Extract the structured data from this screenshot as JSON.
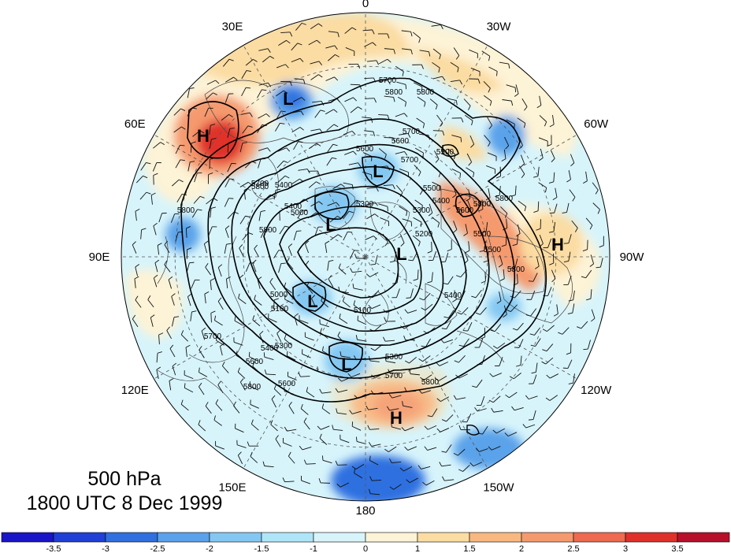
{
  "map": {
    "projection": "north-polar-stereographic",
    "longitude_labels": [
      {
        "lon": 0,
        "text": "0"
      },
      {
        "lon": 30,
        "text": "30W"
      },
      {
        "lon": 60,
        "text": "60W"
      },
      {
        "lon": 90,
        "text": "90W"
      },
      {
        "lon": 120,
        "text": "120W"
      },
      {
        "lon": 150,
        "text": "150W"
      },
      {
        "lon": 180,
        "text": "180"
      },
      {
        "lon": 210,
        "text": "150E"
      },
      {
        "lon": 240,
        "text": "120E"
      },
      {
        "lon": 270,
        "text": "90E"
      },
      {
        "lon": 300,
        "text": "60E"
      },
      {
        "lon": 330,
        "text": "30E"
      }
    ],
    "contour_labels": [
      "5700",
      "5600",
      "5800",
      "5500",
      "5400",
      "5300",
      "5200",
      "5100",
      "5000"
    ],
    "pressure_centers": [
      {
        "text": "H"
      },
      {
        "text": "L"
      },
      {
        "text": "L"
      },
      {
        "text": "L"
      },
      {
        "text": "L"
      },
      {
        "text": "L"
      },
      {
        "text": "L"
      },
      {
        "text": "H"
      },
      {
        "text": "H"
      }
    ],
    "colors": {
      "negative_strong": "#1f3fd6",
      "negative": "#5aa2ea",
      "negative_weak": "#d7f4fb",
      "positive_weak": "#fdf3d6",
      "positive": "#f59a6e",
      "positive_strong": "#e0302a"
    }
  },
  "colorbar": {
    "tick_labels": [
      "-3.5",
      "-3",
      "-2.5",
      "-2",
      "-1.5",
      "-1",
      "0",
      "1",
      "1.5",
      "2",
      "2.5",
      "3",
      "3.5"
    ],
    "bin_colors": [
      "#1a14c8",
      "#1f3fd6",
      "#2f6fe0",
      "#5aa2ea",
      "#83c7f2",
      "#aee6f8",
      "#d7f4fb",
      "#fdf3d6",
      "#fbdca2",
      "#f8b880",
      "#f59a6e",
      "#ee6a50",
      "#e0302a",
      "#b8102a"
    ]
  },
  "caption": {
    "level": "500 hPa",
    "time": "1800 UTC 8 Dec 1999"
  }
}
